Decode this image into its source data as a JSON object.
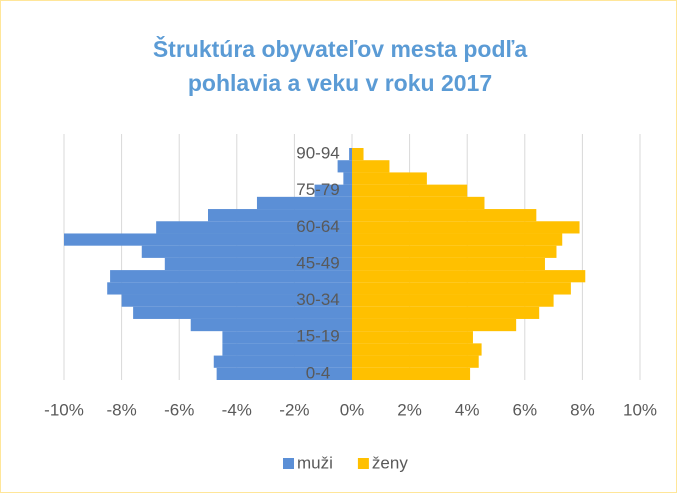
{
  "chart_data": {
    "type": "pyramid",
    "title": "Štruktúra obyvateľov mesta podľa pohlavia a veku v roku 2017",
    "categories": [
      "0-4",
      null,
      null,
      "15-19",
      null,
      null,
      "30-34",
      null,
      null,
      "45-49",
      null,
      null,
      "60-64",
      null,
      null,
      "75-79",
      null,
      null,
      "90-94"
    ],
    "series": [
      {
        "name": "muži",
        "color": "#5b8fd6",
        "values": [
          -4.7,
          -4.8,
          -4.5,
          -4.5,
          -5.6,
          -7.6,
          -8.0,
          -8.5,
          -8.4,
          -6.5,
          -7.3,
          -10.0,
          -6.8,
          -5.0,
          -3.3,
          -1.3,
          -0.3,
          -0.5,
          -0.1
        ]
      },
      {
        "name": "ženy",
        "color": "#ffc000",
        "values": [
          4.1,
          4.4,
          4.5,
          4.2,
          5.7,
          6.5,
          7.0,
          7.6,
          8.1,
          6.7,
          7.1,
          7.3,
          7.9,
          6.4,
          4.6,
          4.0,
          2.6,
          1.3,
          0.4
        ]
      }
    ],
    "xlim": [
      -10,
      10
    ],
    "xticks": [
      {
        "value": -10,
        "label": "-10%"
      },
      {
        "value": -8,
        "label": "-8%"
      },
      {
        "value": -6,
        "label": "-6%"
      },
      {
        "value": -4,
        "label": "-4%"
      },
      {
        "value": -2,
        "label": "-2%"
      },
      {
        "value": 0,
        "label": "0%"
      },
      {
        "value": 2,
        "label": "2%"
      },
      {
        "value": 4,
        "label": "4%"
      },
      {
        "value": 6,
        "label": "6%"
      },
      {
        "value": 8,
        "label": "8%"
      },
      {
        "value": 10,
        "label": "10%"
      }
    ],
    "grid": true,
    "legend": "bottom"
  }
}
